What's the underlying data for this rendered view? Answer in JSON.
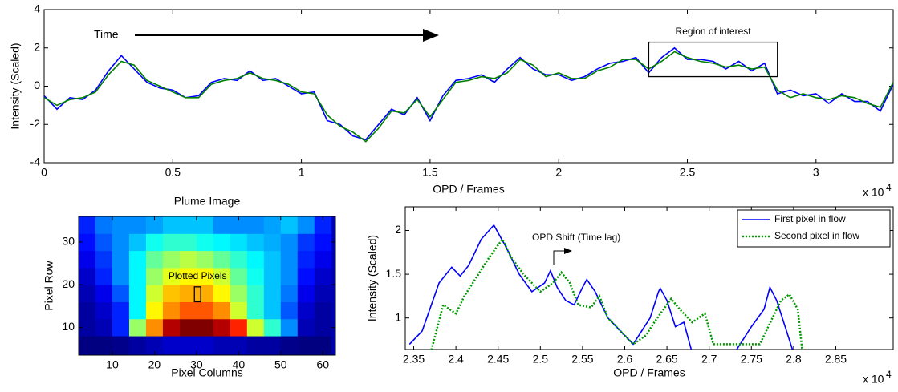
{
  "chart_data": [
    {
      "type": "line",
      "xlabel": "OPD / Frames",
      "ylabel": "Intensity (Scaled)",
      "x_multiplier": {
        "base": "x 10",
        "exponent": "4"
      },
      "annotations": [
        "Time"
      ],
      "region": {
        "label": "Region of interest",
        "x": [
          23500,
          28500
        ],
        "y": [
          0.5,
          2.3
        ]
      },
      "xlim": [
        0,
        33000
      ],
      "ylim": [
        -4,
        4
      ],
      "xticks": [
        0,
        {
          "value": 5000,
          "label": "0.5"
        },
        {
          "value": 10000,
          "label": "1"
        },
        {
          "value": 15000,
          "label": "1.5"
        },
        {
          "value": 20000,
          "label": "2"
        },
        {
          "value": 25000,
          "label": "2.5"
        },
        {
          "value": 30000,
          "label": "3"
        }
      ],
      "yticks": [
        -4,
        -2,
        0,
        2,
        4
      ],
      "x": [
        0,
        500,
        1000,
        1500,
        2000,
        2500,
        3000,
        3500,
        4000,
        4500,
        5000,
        5500,
        6000,
        6500,
        7000,
        7500,
        8000,
        8500,
        9000,
        9500,
        10000,
        10500,
        11000,
        11500,
        12000,
        12500,
        13000,
        13500,
        14000,
        14500,
        15000,
        15500,
        16000,
        16500,
        17000,
        17500,
        18000,
        18500,
        19000,
        19500,
        20000,
        20500,
        21000,
        21500,
        22000,
        22500,
        23000,
        23500,
        24000,
        24500,
        25000,
        25500,
        26000,
        26500,
        27000,
        27500,
        28000,
        28500,
        29000,
        29500,
        30000,
        30500,
        31000,
        31500,
        32000,
        32500,
        33000
      ],
      "series": [
        {
          "color": "#0000ff",
          "values": [
            -0.5,
            -1.2,
            -0.6,
            -0.7,
            -0.2,
            0.8,
            1.6,
            0.9,
            0.2,
            -0.1,
            -0.2,
            -0.6,
            -0.5,
            0.2,
            0.4,
            0.3,
            0.8,
            0.3,
            0.4,
            0.0,
            -0.4,
            -0.3,
            -1.8,
            -2.0,
            -2.6,
            -2.8,
            -2.0,
            -1.2,
            -1.5,
            -0.6,
            -1.8,
            -0.5,
            0.3,
            0.4,
            0.6,
            0.2,
            0.9,
            1.5,
            0.9,
            0.6,
            0.6,
            0.3,
            0.5,
            0.9,
            1.2,
            1.3,
            1.5,
            0.7,
            1.5,
            2.0,
            1.4,
            1.4,
            1.3,
            0.9,
            1.3,
            0.8,
            1.2,
            -0.4,
            -0.2,
            -0.5,
            -0.4,
            -0.9,
            -0.4,
            -0.8,
            -0.8,
            -1.3,
            0.1
          ]
        },
        {
          "color": "#008000",
          "values": [
            -0.6,
            -1.0,
            -0.7,
            -0.6,
            -0.3,
            0.6,
            1.3,
            1.1,
            0.3,
            0.0,
            -0.3,
            -0.6,
            -0.6,
            0.1,
            0.3,
            0.4,
            0.7,
            0.4,
            0.3,
            0.1,
            -0.3,
            -0.4,
            -1.5,
            -2.1,
            -2.4,
            -2.9,
            -2.2,
            -1.3,
            -1.4,
            -0.7,
            -1.6,
            -0.7,
            0.2,
            0.3,
            0.5,
            0.4,
            0.7,
            1.4,
            1.1,
            0.5,
            0.7,
            0.4,
            0.4,
            0.8,
            1.0,
            1.4,
            1.4,
            0.9,
            1.3,
            1.8,
            1.5,
            1.3,
            1.2,
            1.0,
            1.1,
            0.9,
            1.0,
            -0.2,
            -0.6,
            -0.4,
            -0.6,
            -0.7,
            -0.5,
            -0.6,
            -0.9,
            -1.1,
            0.2
          ]
        }
      ]
    },
    {
      "type": "heatmap",
      "title": "Plume Image",
      "xlabel": "Pixel Columns",
      "ylabel": "Pixel Row",
      "highlight": {
        "label": "Plotted Pixels",
        "x": [
          29.5,
          31
        ],
        "y": [
          16,
          19.5
        ]
      },
      "xlim": [
        2,
        63
      ],
      "ylim": [
        3.5,
        36
      ],
      "xticks": [
        10,
        20,
        30,
        40,
        50,
        60
      ],
      "yticks": [
        10,
        20,
        30
      ],
      "x": [
        4,
        8,
        12,
        16,
        20,
        24,
        28,
        32,
        36,
        40,
        44,
        48,
        52,
        56,
        60
      ],
      "y": [
        6,
        10,
        14,
        18,
        22,
        26,
        30,
        34
      ],
      "z": [
        [
          0.05,
          0.05,
          0.06,
          0.08,
          0.1,
          0.12,
          0.12,
          0.12,
          0.1,
          0.1,
          0.08,
          0.08,
          0.06,
          0.05,
          0.05
        ],
        [
          0.08,
          0.1,
          0.2,
          0.55,
          0.75,
          0.95,
          1.0,
          1.0,
          0.95,
          0.85,
          0.6,
          0.45,
          0.3,
          0.1,
          0.08
        ],
        [
          0.08,
          0.12,
          0.2,
          0.4,
          0.65,
          0.75,
          0.8,
          0.8,
          0.75,
          0.6,
          0.45,
          0.35,
          0.25,
          0.12,
          0.08
        ],
        [
          0.1,
          0.15,
          0.25,
          0.4,
          0.6,
          0.7,
          0.72,
          0.72,
          0.65,
          0.55,
          0.45,
          0.35,
          0.28,
          0.15,
          0.1
        ],
        [
          0.12,
          0.2,
          0.3,
          0.4,
          0.55,
          0.62,
          0.65,
          0.65,
          0.6,
          0.5,
          0.42,
          0.35,
          0.3,
          0.18,
          0.12
        ],
        [
          0.15,
          0.22,
          0.3,
          0.4,
          0.5,
          0.55,
          0.58,
          0.55,
          0.5,
          0.45,
          0.4,
          0.35,
          0.3,
          0.2,
          0.15
        ],
        [
          0.18,
          0.25,
          0.3,
          0.35,
          0.42,
          0.45,
          0.45,
          0.42,
          0.4,
          0.38,
          0.35,
          0.33,
          0.3,
          0.22,
          0.18
        ],
        [
          0.2,
          0.28,
          0.3,
          0.3,
          0.32,
          0.35,
          0.35,
          0.35,
          0.3,
          0.3,
          0.3,
          0.32,
          0.35,
          0.3,
          0.2
        ]
      ]
    },
    {
      "type": "line",
      "xlabel": "OPD / Frames",
      "ylabel": "Intensity (Scaled)",
      "x_multiplier": {
        "base": "x 10",
        "exponent": "4"
      },
      "annotations": [
        "OPD Shift (Time lag)"
      ],
      "legend": "upper right",
      "xlim": [
        23400,
        29180
      ],
      "ylim": [
        0.64,
        2.27
      ],
      "xticks": [
        {
          "value": 23500,
          "label": "2.35"
        },
        {
          "value": 24000,
          "label": "2.4"
        },
        {
          "value": 24500,
          "label": "2.45"
        },
        {
          "value": 25000,
          "label": "2.5"
        },
        {
          "value": 25500,
          "label": "2.55"
        },
        {
          "value": 26000,
          "label": "2.6"
        },
        {
          "value": 26500,
          "label": "2.65"
        },
        {
          "value": 27000,
          "label": "2.7"
        },
        {
          "value": 27500,
          "label": "2.75"
        },
        {
          "value": 28000,
          "label": "2.8"
        },
        {
          "value": 28500,
          "label": "2.85"
        }
      ],
      "yticks": [
        1,
        1.5,
        2
      ],
      "series": [
        {
          "name": "First pixel in flow",
          "color": "#0000ff",
          "dash": "solid",
          "x": [
            23450,
            23600,
            23800,
            23950,
            24050,
            24150,
            24300,
            24450,
            24600,
            24750,
            24900,
            25050,
            25120,
            25200,
            25300,
            25400,
            25500,
            25550,
            25650,
            25800,
            25900,
            26000,
            26100,
            26200,
            26300,
            26400,
            26420,
            26500,
            26600,
            26700,
            26800,
            27300,
            27500,
            27650,
            27720,
            27800,
            28000
          ],
          "values": [
            0.7,
            0.85,
            1.4,
            1.58,
            1.48,
            1.6,
            1.9,
            2.06,
            1.8,
            1.5,
            1.3,
            1.4,
            1.54,
            1.35,
            1.2,
            1.15,
            1.35,
            1.44,
            1.3,
            1.0,
            0.9,
            0.8,
            0.7,
            0.85,
            1.0,
            1.3,
            1.34,
            1.2,
            0.9,
            0.95,
            0.6,
            0.6,
            0.9,
            1.1,
            1.35,
            1.2,
            0.6
          ]
        },
        {
          "name": "Second pixel in flow",
          "color": "#009900",
          "dash": "dotted",
          "x": [
            23700,
            23850,
            24000,
            24100,
            24200,
            24400,
            24550,
            24650,
            24800,
            25000,
            25150,
            25250,
            25350,
            25450,
            25600,
            25700,
            25800,
            25950,
            26100,
            26250,
            26350,
            26550,
            26650,
            26800,
            26950,
            27050,
            27600,
            27750,
            27850,
            27950,
            28050,
            28100
          ],
          "values": [
            0.6,
            1.15,
            1.05,
            1.25,
            1.4,
            1.7,
            1.9,
            1.7,
            1.5,
            1.3,
            1.4,
            1.52,
            1.4,
            1.15,
            1.12,
            1.25,
            1.0,
            0.85,
            0.7,
            0.8,
            0.95,
            1.22,
            1.1,
            0.95,
            1.05,
            0.7,
            0.7,
            1.0,
            1.2,
            1.27,
            1.1,
            0.65
          ]
        }
      ]
    }
  ]
}
